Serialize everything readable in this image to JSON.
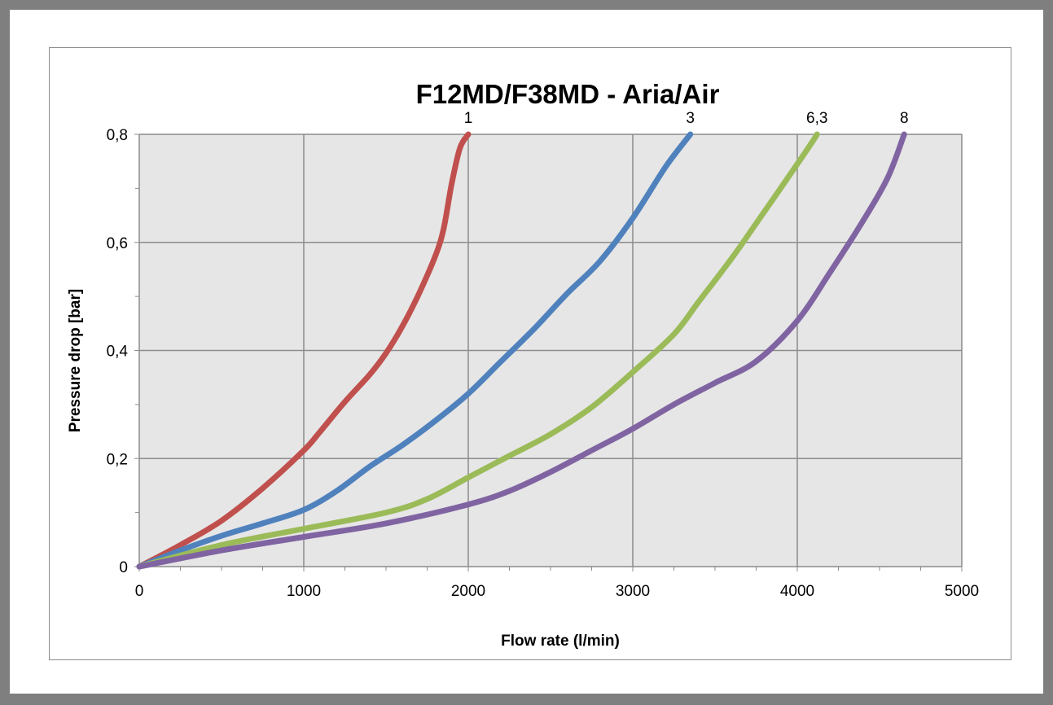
{
  "chart_data": {
    "type": "line",
    "title": "F12MD/F38MD - Aria/Air",
    "xlabel": "Flow rate  (l/min)",
    "ylabel": "Pressure drop  [bar]",
    "xlim": [
      0,
      5000
    ],
    "ylim": [
      0,
      0.8
    ],
    "x_ticks": [
      0,
      1000,
      2000,
      3000,
      4000,
      5000
    ],
    "x_tick_labels": [
      "0",
      "1000",
      "2000",
      "3000",
      "4000",
      "5000"
    ],
    "y_ticks": [
      0,
      0.2,
      0.4,
      0.6,
      0.8
    ],
    "y_tick_labels": [
      "0",
      "0,2",
      "0,4",
      "0,6",
      "0,8"
    ],
    "grid": true,
    "plot_background": "#e6e6e6",
    "legend": "none",
    "series": [
      {
        "name": "1",
        "color": "#c0504d",
        "points": [
          [
            0,
            0
          ],
          [
            250,
            0.04
          ],
          [
            500,
            0.085
          ],
          [
            750,
            0.145
          ],
          [
            1000,
            0.215
          ],
          [
            1100,
            0.25
          ],
          [
            1250,
            0.305
          ],
          [
            1400,
            0.355
          ],
          [
            1500,
            0.395
          ],
          [
            1600,
            0.445
          ],
          [
            1700,
            0.505
          ],
          [
            1800,
            0.575
          ],
          [
            1850,
            0.625
          ],
          [
            1900,
            0.71
          ],
          [
            1950,
            0.775
          ],
          [
            2000,
            0.8
          ]
        ]
      },
      {
        "name": "3",
        "color": "#4f81bd",
        "points": [
          [
            0,
            0
          ],
          [
            250,
            0.03
          ],
          [
            500,
            0.057
          ],
          [
            750,
            0.08
          ],
          [
            1000,
            0.105
          ],
          [
            1200,
            0.14
          ],
          [
            1400,
            0.185
          ],
          [
            1600,
            0.225
          ],
          [
            1800,
            0.27
          ],
          [
            2000,
            0.32
          ],
          [
            2200,
            0.38
          ],
          [
            2400,
            0.44
          ],
          [
            2600,
            0.505
          ],
          [
            2800,
            0.565
          ],
          [
            3000,
            0.645
          ],
          [
            3200,
            0.74
          ],
          [
            3350,
            0.8
          ]
        ]
      },
      {
        "name": "6,3",
        "color": "#9bbb59",
        "points": [
          [
            0,
            0
          ],
          [
            500,
            0.04
          ],
          [
            1000,
            0.07
          ],
          [
            1500,
            0.1
          ],
          [
            1750,
            0.125
          ],
          [
            2000,
            0.165
          ],
          [
            2250,
            0.205
          ],
          [
            2500,
            0.245
          ],
          [
            2750,
            0.295
          ],
          [
            3000,
            0.36
          ],
          [
            3250,
            0.43
          ],
          [
            3400,
            0.49
          ],
          [
            3600,
            0.57
          ],
          [
            3750,
            0.635
          ],
          [
            4000,
            0.745
          ],
          [
            4100,
            0.79
          ],
          [
            4120,
            0.8
          ]
        ]
      },
      {
        "name": "8",
        "color": "#8064a2",
        "points": [
          [
            0,
            0
          ],
          [
            500,
            0.03
          ],
          [
            1000,
            0.055
          ],
          [
            1500,
            0.08
          ],
          [
            2000,
            0.115
          ],
          [
            2250,
            0.14
          ],
          [
            2500,
            0.175
          ],
          [
            2750,
            0.215
          ],
          [
            3000,
            0.255
          ],
          [
            3250,
            0.3
          ],
          [
            3500,
            0.34
          ],
          [
            3750,
            0.38
          ],
          [
            4000,
            0.455
          ],
          [
            4200,
            0.545
          ],
          [
            4400,
            0.64
          ],
          [
            4550,
            0.72
          ],
          [
            4650,
            0.8
          ]
        ]
      }
    ]
  }
}
